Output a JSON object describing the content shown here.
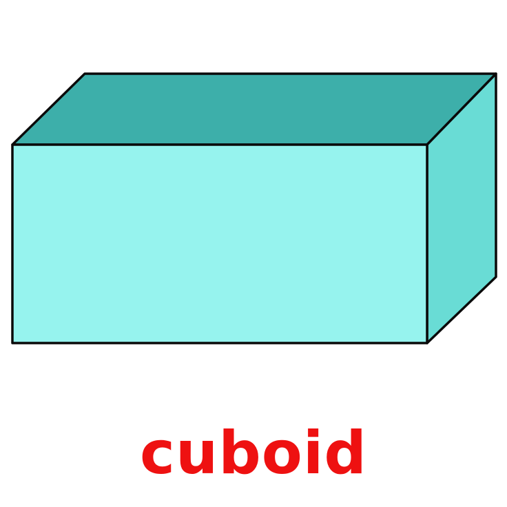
{
  "label": "cuboid",
  "colors": {
    "front_face": "#96F3EE",
    "top_face": "#3DAFAA",
    "side_face": "#69DCD5",
    "outline": "#0A0A0A",
    "label": "#EE1111",
    "background": "#FFFFFF"
  }
}
